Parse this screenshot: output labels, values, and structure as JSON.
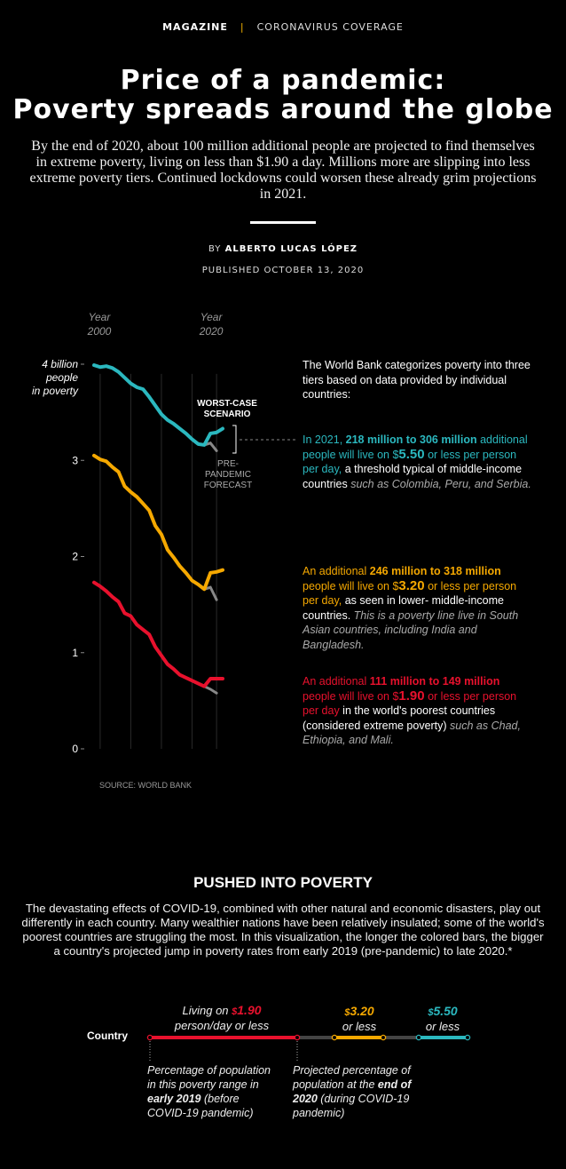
{
  "header": {
    "magazine": "MAGAZINE",
    "section": "CORONAVIRUS COVERAGE"
  },
  "title_line1": "Price of a pandemic:",
  "title_line2": "Poverty spreads around the globe",
  "intro": "By the end of 2020, about 100 million additional people are projected to find themselves in extreme poverty, living on less than $1.90 a day. Millions more are slipping into less extreme poverty tiers. Continued lockdowns could worsen these already grim projections in 2021.",
  "byline": {
    "by": "BY",
    "author": "ALBERTO LUCAS LÓPEZ"
  },
  "published": "PUBLISHED OCTOBER 13, 2020",
  "colors": {
    "tier_5_50": "#2bb8bf",
    "tier_3_20": "#f5a800",
    "tier_1_90": "#e8112d",
    "forecast": "#888888"
  },
  "chart_data": {
    "type": "line",
    "x_label_start": "Year 2000",
    "x_label_end": "Year 2020",
    "y_ticks": [
      "0",
      "1",
      "2",
      "3",
      "4 billion people in poverty"
    ],
    "ylim": [
      0,
      4
    ],
    "xlim": [
      2000,
      2021
    ],
    "series": [
      {
        "name": "$5.50 or less per day",
        "color": "#2bb8bf",
        "x": [
          2000,
          2001,
          2002,
          2003,
          2004,
          2005,
          2006,
          2007,
          2008,
          2009,
          2010,
          2011,
          2012,
          2013,
          2014,
          2015,
          2016,
          2017,
          2018,
          2019,
          2020,
          2021
        ],
        "values": [
          3.99,
          3.97,
          3.98,
          3.96,
          3.92,
          3.86,
          3.8,
          3.76,
          3.74,
          3.66,
          3.57,
          3.48,
          3.42,
          3.38,
          3.33,
          3.28,
          3.22,
          3.17,
          3.16,
          3.28,
          3.29,
          3.33
        ],
        "forecast": [
          [
            2019,
            3.18
          ],
          [
            2020,
            3.1
          ]
        ]
      },
      {
        "name": "$3.20 or less per day",
        "color": "#f5a800",
        "x": [
          2000,
          2001,
          2002,
          2003,
          2004,
          2005,
          2006,
          2007,
          2008,
          2009,
          2010,
          2011,
          2012,
          2013,
          2014,
          2015,
          2016,
          2017,
          2018,
          2019,
          2020,
          2021
        ],
        "values": [
          3.05,
          3.01,
          2.99,
          2.93,
          2.88,
          2.73,
          2.67,
          2.62,
          2.55,
          2.48,
          2.32,
          2.23,
          2.07,
          1.99,
          1.9,
          1.83,
          1.75,
          1.71,
          1.66,
          1.83,
          1.84,
          1.86
        ],
        "forecast": [
          [
            2019,
            1.68
          ],
          [
            2020,
            1.55
          ]
        ]
      },
      {
        "name": "$1.90 or less per day",
        "color": "#e8112d",
        "x": [
          2000,
          2001,
          2002,
          2003,
          2004,
          2005,
          2006,
          2007,
          2008,
          2009,
          2010,
          2011,
          2012,
          2013,
          2014,
          2015,
          2016,
          2017,
          2018,
          2019,
          2020,
          2021
        ],
        "values": [
          1.73,
          1.69,
          1.64,
          1.58,
          1.53,
          1.41,
          1.38,
          1.29,
          1.24,
          1.19,
          1.06,
          0.97,
          0.88,
          0.83,
          0.77,
          0.74,
          0.71,
          0.68,
          0.65,
          0.73,
          0.73,
          0.73
        ],
        "forecast": [
          [
            2019,
            0.62
          ],
          [
            2020,
            0.58
          ]
        ]
      }
    ],
    "annotations": {
      "worst_case": "WORST-CASE SCENARIO",
      "pre_pandemic": "PRE-PANDEMIC FORECAST"
    }
  },
  "notes": {
    "intro": "The World Bank categorizes poverty into three tiers based on data provided by individual countries:",
    "teal_pre": "In 2021, ",
    "teal_bold": "218 million to 306 million",
    "teal_mid": " additional people will live on ",
    "teal_dollar": "$",
    "teal_amount": "5.50",
    "teal_post": " or less per person per day,",
    "teal_rest": " a threshold typical of middle-income countries ",
    "teal_italic": "such as Colombia, Peru, and Serbia.",
    "gold_pre": "An additional ",
    "gold_bold": "246 million to 318 million",
    "gold_mid": " people will live on ",
    "gold_dollar": "$",
    "gold_amount": "3.20",
    "gold_post": " or less per person per day,",
    "gold_rest": " as seen in lower- middle-income countries. ",
    "gold_italic": "This is a poverty line live in South Asian countries, including India and Bangladesh.",
    "red_pre": "An additional ",
    "red_bold": "111 million to 149 million",
    "red_mid": " people will live on ",
    "red_dollar": "$",
    "red_amount": "1.90",
    "red_post": " or less per person per day",
    "red_rest": " in the world's poorest countries (considered extreme poverty) ",
    "red_italic": "such as Chad, Ethiopia, and Mali."
  },
  "source": "SOURCE: WORLD BANK",
  "section": {
    "title": "PUSHED INTO POVERTY",
    "text": "The devastating effects of COVID-19, combined with other natural and economic disasters, play out differently in each country. Many wealthier nations have been relatively insulated; some of the world's poorest countries are struggling the most. In this visualization, the longer the colored bars, the bigger a country's projected jump in poverty rates from early 2019 (pre-pandemic) to late 2020.*"
  },
  "legend": {
    "country": "Country",
    "red_label_pre": "Living on ",
    "red_dollar": "$",
    "red_amount": "1.90",
    "red_label_post": "person/day or less",
    "gold_dollar": "$",
    "gold_amount": "3.20",
    "gold_post": "or less",
    "teal_dollar": "$",
    "teal_amount": "5.50",
    "teal_post": "or less",
    "note1_a": "Percentage of population in this poverty range in ",
    "note1_b": "early 2019",
    "note1_c": " (before COVID-19 pandemic)",
    "note2_a": "Projected percentage of population at the ",
    "note2_b": "end of 2020",
    "note2_c": " (during COVID-19 pandemic)"
  }
}
